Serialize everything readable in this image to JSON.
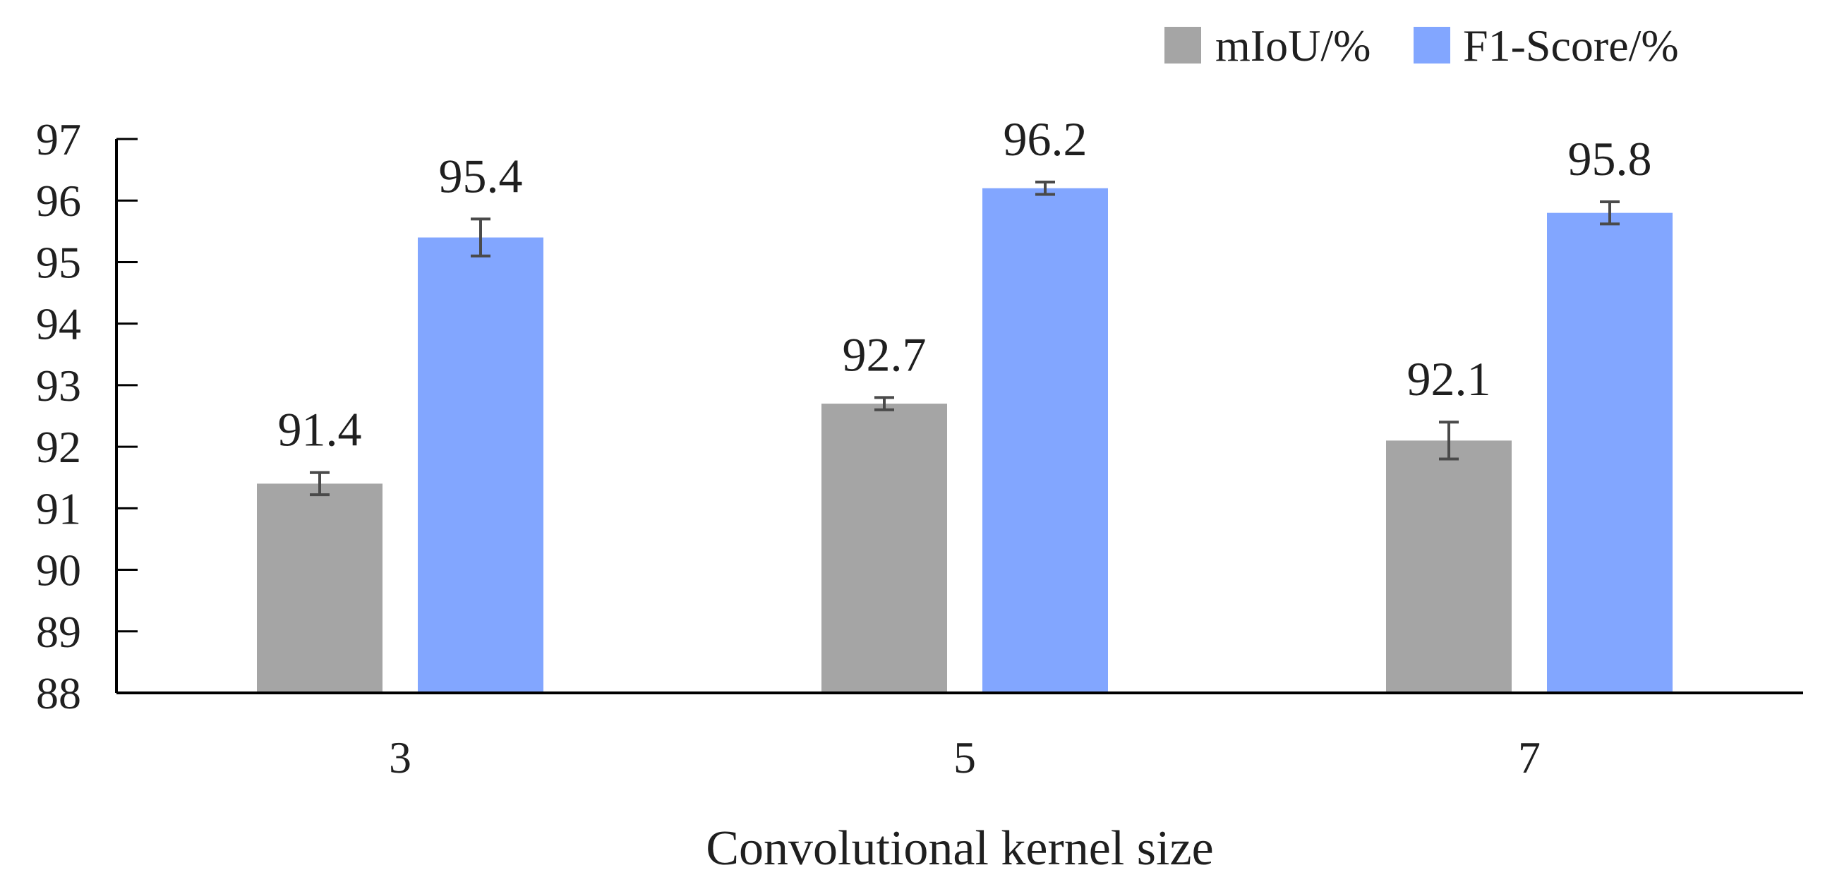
{
  "colors": {
    "axis": "#000000",
    "error_bar": "#4a4a4a"
  },
  "chart_data": {
    "type": "bar",
    "title": "",
    "xlabel": "Convolutional kernel size",
    "ylabel": "",
    "categories": [
      "3",
      "5",
      "7"
    ],
    "ylim": [
      88,
      97
    ],
    "yticks": [
      97,
      96,
      95,
      94,
      93,
      92,
      91,
      90,
      89,
      88
    ],
    "grid": false,
    "legend_position": "top-right",
    "series": [
      {
        "name": "mIoU/%",
        "color": "#a5a5a5",
        "values": [
          91.4,
          92.7,
          92.1
        ],
        "labels": [
          "91.4",
          "92.7",
          "92.1"
        ],
        "error": [
          0.18,
          0.1,
          0.3
        ]
      },
      {
        "name": "F1-Score/%",
        "color": "#82a6ff",
        "values": [
          95.4,
          96.2,
          95.8
        ],
        "labels": [
          "95.4",
          "96.2",
          "95.8"
        ],
        "error": [
          0.3,
          0.1,
          0.18
        ]
      }
    ]
  }
}
